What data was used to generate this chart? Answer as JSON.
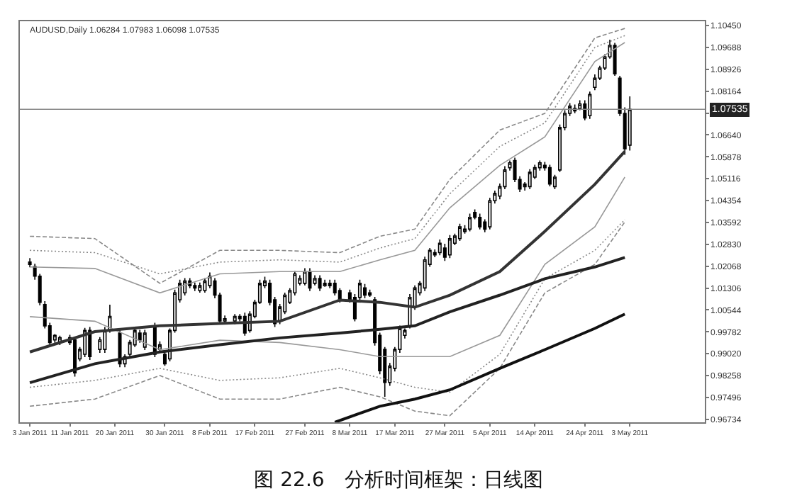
{
  "chart_data": {
    "type": "candlestick",
    "title": "图 22.6　分析时间框架：日线图",
    "annotations": [
      "AUDUSD,Daily 1.06284 1.07983 1.06098 1.07535"
    ],
    "color": "#000000",
    "grid": false,
    "marker": "none",
    "xlim": [
      "2011-01-01",
      "2011-05-18"
    ],
    "xticks": [
      {
        "value": "2011-01-03",
        "label": "3 Jan 2011"
      },
      {
        "value": "2011-01-11",
        "label": "11 Jan 2011"
      },
      {
        "value": "2011-01-20",
        "label": "20 Jan 2011"
      },
      {
        "value": "2011-01-30",
        "label": "30 Jan 2011"
      },
      {
        "value": "2011-02-08",
        "label": "8 Feb 2011"
      },
      {
        "value": "2011-02-17",
        "label": "17 Feb 2011"
      },
      {
        "value": "2011-02-27",
        "label": "27 Feb 2011"
      },
      {
        "value": "2011-03-08",
        "label": "8 Mar 2011"
      },
      {
        "value": "2011-03-17",
        "label": "17 Mar 2011"
      },
      {
        "value": "2011-03-27",
        "label": "27 Mar 2011"
      },
      {
        "value": "2011-04-05",
        "label": "5 Apr 2011"
      },
      {
        "value": "2011-04-14",
        "label": "14 Apr 2011"
      },
      {
        "value": "2011-04-24",
        "label": "24 Apr 2011"
      },
      {
        "value": "2011-05-03",
        "label": "3 May 2011"
      }
    ],
    "ylim": [
      0.9663,
      1.106
    ],
    "yticks": [
      {
        "value": 1.1045,
        "label": "1.10450"
      },
      {
        "value": 1.09688,
        "label": "1.09688"
      },
      {
        "value": 1.08926,
        "label": "1.08926"
      },
      {
        "value": 1.08164,
        "label": "1.08164"
      },
      {
        "value": 1.07402,
        "label": null
      },
      {
        "value": 1.0664,
        "label": "1.06640"
      },
      {
        "value": 1.05878,
        "label": "1.05878"
      },
      {
        "value": 1.05116,
        "label": "1.05116"
      },
      {
        "value": 1.04354,
        "label": "1.04354"
      },
      {
        "value": 1.03592,
        "label": "1.03592"
      },
      {
        "value": 1.0283,
        "label": "1.02830"
      },
      {
        "value": 1.02068,
        "label": "1.02068"
      },
      {
        "value": 1.01306,
        "label": "1.01306"
      },
      {
        "value": 1.00544,
        "label": "1.00544"
      },
      {
        "value": 0.99782,
        "label": "0.99782"
      },
      {
        "value": 0.9902,
        "label": "0.99020"
      },
      {
        "value": 0.98258,
        "label": "0.98258"
      },
      {
        "value": 0.97496,
        "label": "0.97496"
      },
      {
        "value": 0.96734,
        "label": "0.96734"
      }
    ],
    "ref_lines": [
      {
        "axis": "y",
        "value": 1.07535,
        "label": "1.07535",
        "color": "#888888"
      }
    ],
    "x": [
      "2011-01-03",
      "2011-01-04",
      "2011-01-05",
      "2011-01-06",
      "2011-01-07",
      "2011-01-08",
      "2011-01-09",
      "2011-01-11",
      "2011-01-12",
      "2011-01-13",
      "2011-01-14",
      "2011-01-15",
      "2011-01-17",
      "2011-01-18",
      "2011-01-19",
      "2011-01-21",
      "2011-01-22",
      "2011-01-23",
      "2011-01-24",
      "2011-01-25",
      "2011-01-26",
      "2011-01-28",
      "2011-01-29",
      "2011-01-30",
      "2011-01-31",
      "2011-02-01",
      "2011-02-02",
      "2011-02-03",
      "2011-02-04",
      "2011-02-05",
      "2011-02-06",
      "2011-02-07",
      "2011-02-08",
      "2011-02-09",
      "2011-02-10",
      "2011-02-11",
      "2011-02-13",
      "2011-02-14",
      "2011-02-15",
      "2011-02-16",
      "2011-02-17",
      "2011-02-18",
      "2011-02-19",
      "2011-02-20",
      "2011-02-21",
      "2011-02-22",
      "2011-02-23",
      "2011-02-24",
      "2011-02-25",
      "2011-02-26",
      "2011-02-27",
      "2011-02-28",
      "2011-03-01",
      "2011-03-02",
      "2011-03-03",
      "2011-03-04",
      "2011-03-05",
      "2011-03-06",
      "2011-03-08",
      "2011-03-09",
      "2011-03-10",
      "2011-03-11",
      "2011-03-12",
      "2011-03-13",
      "2011-03-14",
      "2011-03-15",
      "2011-03-16",
      "2011-03-17",
      "2011-03-18",
      "2011-03-19",
      "2011-03-20",
      "2011-03-21",
      "2011-03-22",
      "2011-03-23",
      "2011-03-24",
      "2011-03-25",
      "2011-03-26",
      "2011-03-27",
      "2011-03-28",
      "2011-03-29",
      "2011-03-30",
      "2011-03-31",
      "2011-04-01",
      "2011-04-02",
      "2011-04-03",
      "2011-04-04",
      "2011-04-05",
      "2011-04-06",
      "2011-04-07",
      "2011-04-08",
      "2011-04-09",
      "2011-04-10",
      "2011-04-11",
      "2011-04-12",
      "2011-04-13",
      "2011-04-14",
      "2011-04-15",
      "2011-04-16",
      "2011-04-17",
      "2011-04-18",
      "2011-04-19",
      "2011-04-20",
      "2011-04-21",
      "2011-04-22",
      "2011-04-23",
      "2011-04-24",
      "2011-04-25",
      "2011-04-26",
      "2011-04-27",
      "2011-04-28",
      "2011-04-29",
      "2011-04-30",
      "2011-05-01",
      "2011-05-02",
      "2011-05-03"
    ],
    "ohlc": [
      [
        1.0221,
        1.0235,
        1.0203,
        1.0213
      ],
      [
        1.0205,
        1.0215,
        1.016,
        1.0172
      ],
      [
        1.0172,
        1.018,
        1.007,
        1.0081
      ],
      [
        1.0073,
        1.0085,
        0.999,
        0.9999
      ],
      [
        0.9999,
        1.001,
        0.993,
        0.9941
      ],
      [
        0.995,
        0.997,
        0.994,
        0.9966
      ],
      [
        0.9941,
        0.9965,
        0.9932,
        0.9958
      ],
      [
        0.9958,
        0.9968,
        0.9932,
        0.9941
      ],
      [
        0.995,
        0.996,
        0.9822,
        0.9835
      ],
      [
        0.9884,
        0.9925,
        0.9875,
        0.9917
      ],
      [
        0.99,
        0.9992,
        0.989,
        0.9983
      ],
      [
        0.9983,
        0.9995,
        0.988,
        0.9892
      ],
      [
        0.9917,
        0.996,
        0.9905,
        0.995
      ],
      [
        0.9917,
        0.9995,
        0.9905,
        0.9983
      ],
      [
        0.9983,
        1.0073,
        0.9975,
        1.0032
      ],
      [
        0.9974,
        0.999,
        0.9855,
        0.9867
      ],
      [
        0.9867,
        0.99,
        0.9855,
        0.9892
      ],
      [
        0.99,
        0.995,
        0.989,
        0.9941
      ],
      [
        0.9933,
        0.999,
        0.9925,
        0.9983
      ],
      [
        0.9974,
        0.9985,
        0.994,
        0.995
      ],
      [
        0.9925,
        0.9985,
        0.9915,
        0.9974
      ],
      [
        0.9999,
        1.001,
        0.989,
        0.99
      ],
      [
        0.9917,
        0.9945,
        0.9905,
        0.9933
      ],
      [
        0.99,
        0.991,
        0.986,
        0.9867
      ],
      [
        0.9884,
        0.999,
        0.9875,
        0.9983
      ],
      [
        0.9983,
        1.0125,
        0.9975,
        1.0114
      ],
      [
        1.009,
        1.016,
        1.008,
        1.0147
      ],
      [
        1.0114,
        1.0165,
        1.0105,
        1.0155
      ],
      [
        1.0155,
        1.0165,
        1.013,
        1.0139
      ],
      [
        1.0139,
        1.015,
        1.012,
        1.0131
      ],
      [
        1.0122,
        1.015,
        1.0115,
        1.0139
      ],
      [
        1.0122,
        1.0165,
        1.0115,
        1.0155
      ],
      [
        1.0139,
        1.0185,
        1.013,
        1.0172
      ],
      [
        1.0155,
        1.0165,
        1.0095,
        1.0106
      ],
      [
        1.0106,
        1.0115,
        1.0005,
        1.0016
      ],
      [
        1.0016,
        1.0035,
        1.001,
        1.0024
      ],
      [
        1.0016,
        1.004,
        1.0005,
        1.0032
      ],
      [
        1.0032,
        1.004,
        1.0015,
        1.0024
      ],
      [
        1.0032,
        1.0045,
        0.9965,
        0.9974
      ],
      [
        0.9983,
        1.005,
        0.9975,
        1.004
      ],
      [
        1.0032,
        1.009,
        1.0025,
        1.0081
      ],
      [
        1.0081,
        1.016,
        1.0075,
        1.0147
      ],
      [
        1.0139,
        1.017,
        1.013,
        1.0155
      ],
      [
        1.0147,
        1.016,
        1.007,
        1.0081
      ],
      [
        1.009,
        1.01,
        0.9995,
        1.0007
      ],
      [
        1.0016,
        1.0075,
        1.0005,
        1.0065
      ],
      [
        1.0048,
        1.0115,
        1.004,
        1.0106
      ],
      [
        1.0081,
        1.013,
        1.0075,
        1.0122
      ],
      [
        1.0114,
        1.019,
        1.0105,
        1.018
      ],
      [
        1.0147,
        1.0175,
        1.014,
        1.0164
      ],
      [
        1.0147,
        1.02,
        1.014,
        1.0188
      ],
      [
        1.0188,
        1.02,
        1.012,
        1.0131
      ],
      [
        1.0147,
        1.0175,
        1.014,
        1.0164
      ],
      [
        1.0164,
        1.0175,
        1.012,
        1.0131
      ],
      [
        1.0139,
        1.016,
        1.0135,
        1.0147
      ],
      [
        1.0147,
        1.016,
        1.013,
        1.0139
      ],
      [
        1.0147,
        1.016,
        1.0105,
        1.0114
      ],
      [
        1.0122,
        1.013,
        1.008,
        1.009
      ],
      [
        1.0114,
        1.0125,
        1.008,
        1.009
      ],
      [
        1.0098,
        1.011,
        1.0015,
        1.0024
      ],
      [
        1.0098,
        1.016,
        1.009,
        1.0147
      ],
      [
        1.0131,
        1.0145,
        1.0095,
        1.0106
      ],
      [
        1.0114,
        1.0125,
        1.01,
        1.0106
      ],
      [
        1.009,
        1.01,
        0.993,
        0.9941
      ],
      [
        0.9966,
        0.9975,
        0.983,
        0.9843
      ],
      [
        0.9917,
        0.9925,
        0.9752,
        0.9802
      ],
      [
        0.9802,
        0.987,
        0.979,
        0.9859
      ],
      [
        0.9851,
        0.9925,
        0.984,
        0.9917
      ],
      [
        0.9917,
        1.0,
        0.9905,
        0.9991
      ],
      [
        0.9966,
        0.999,
        0.9955,
        0.9983
      ],
      [
        0.9999,
        1.011,
        0.999,
        1.0098
      ],
      [
        1.0065,
        1.014,
        1.0055,
        1.0131
      ],
      [
        1.0114,
        1.0155,
        1.0105,
        1.0147
      ],
      [
        1.0131,
        1.024,
        1.012,
        1.0229
      ],
      [
        1.0213,
        1.027,
        1.0205,
        1.0262
      ],
      [
        1.0254,
        1.0265,
        1.0238,
        1.0246
      ],
      [
        1.0254,
        1.03,
        1.0245,
        1.0287
      ],
      [
        1.027,
        1.0285,
        1.0225,
        1.0238
      ],
      [
        1.0246,
        1.0315,
        1.0235,
        1.0303
      ],
      [
        1.0287,
        1.032,
        1.028,
        1.0312
      ],
      [
        1.0303,
        1.0355,
        1.0295,
        1.0344
      ],
      [
        1.0328,
        1.035,
        1.032,
        1.0336
      ],
      [
        1.0336,
        1.039,
        1.0328,
        1.0377
      ],
      [
        1.0394,
        1.0405,
        1.037,
        1.0377
      ],
      [
        1.0377,
        1.039,
        1.0335,
        1.0344
      ],
      [
        1.0361,
        1.037,
        1.0325,
        1.0336
      ],
      [
        1.0344,
        1.0445,
        1.0335,
        1.0435
      ],
      [
        1.0435,
        1.047,
        1.0425,
        1.046
      ],
      [
        1.0451,
        1.0495,
        1.044,
        1.0484
      ],
      [
        1.0484,
        1.0555,
        1.0475,
        1.0542
      ],
      [
        1.055,
        1.0575,
        1.054,
        1.0567
      ],
      [
        1.0575,
        1.0585,
        1.05,
        1.0509
      ],
      [
        1.0509,
        1.052,
        1.0465,
        1.0476
      ],
      [
        1.0484,
        1.05,
        1.047,
        1.0493
      ],
      [
        1.0484,
        1.0545,
        1.0475,
        1.0534
      ],
      [
        1.0517,
        1.056,
        1.051,
        1.055
      ],
      [
        1.055,
        1.0575,
        1.054,
        1.0567
      ],
      [
        1.0558,
        1.057,
        1.054,
        1.055
      ],
      [
        1.055,
        1.056,
        1.0485,
        1.0493
      ],
      [
        1.0484,
        1.0525,
        1.0475,
        1.0517
      ],
      [
        1.0542,
        1.07,
        1.0535,
        1.069
      ],
      [
        1.069,
        1.075,
        1.068,
        1.0739
      ],
      [
        1.0739,
        1.0775,
        1.073,
        1.0764
      ],
      [
        1.0756,
        1.077,
        1.074,
        1.0748
      ],
      [
        1.0756,
        1.0785,
        1.075,
        1.0772
      ],
      [
        1.0772,
        1.0785,
        1.0715,
        1.0723
      ],
      [
        1.0731,
        1.0815,
        1.072,
        1.0805
      ],
      [
        1.083,
        1.0875,
        1.082,
        1.0862
      ],
      [
        1.0862,
        1.0905,
        1.0855,
        1.0897
      ],
      [
        1.0897,
        1.0945,
        1.089,
        1.0936
      ],
      [
        1.0936,
        1.0996,
        1.093,
        1.0976
      ],
      [
        1.0976,
        1.0985,
        1.087,
        1.0877
      ],
      [
        1.0862,
        1.087,
        1.073,
        1.0739
      ],
      [
        1.0739,
        1.076,
        1.0595,
        1.0616
      ],
      [
        1.06284,
        1.07983,
        1.06098,
        1.07535
      ]
    ],
    "series": [
      {
        "type": "line",
        "color": "#888888",
        "line_style": "dashed",
        "x": [
          "2011-01-03",
          "2011-01-16",
          "2011-01-29",
          "2011-02-10",
          "2011-02-22",
          "2011-03-06",
          "2011-03-14",
          "2011-03-21",
          "2011-03-28",
          "2011-04-07",
          "2011-04-16",
          "2011-04-26",
          "2011-05-02"
        ],
        "values": [
          1.0311,
          1.0303,
          1.0147,
          1.0262,
          1.0262,
          1.0254,
          1.0311,
          1.0336,
          1.0509,
          1.0681,
          1.0739,
          1.1002,
          1.1035
        ]
      },
      {
        "type": "line",
        "color": "#888888",
        "line_style": "dotted",
        "x": [
          "2011-01-03",
          "2011-01-16",
          "2011-01-29",
          "2011-02-10",
          "2011-02-22",
          "2011-03-06",
          "2011-03-14",
          "2011-03-21",
          "2011-03-28",
          "2011-04-07",
          "2011-04-16",
          "2011-04-26",
          "2011-05-02"
        ],
        "values": [
          1.0262,
          1.0254,
          1.018,
          1.0221,
          1.0229,
          1.0221,
          1.027,
          1.0303,
          1.0459,
          1.0624,
          1.0706,
          1.0969,
          1.101
        ]
      },
      {
        "type": "line",
        "color": "#999999",
        "line_style": "solid",
        "x": [
          "2011-01-03",
          "2011-01-16",
          "2011-01-29",
          "2011-02-10",
          "2011-02-22",
          "2011-03-06",
          "2011-03-14",
          "2011-03-21",
          "2011-03-28",
          "2011-04-07",
          "2011-04-16",
          "2011-04-26",
          "2011-05-02"
        ],
        "values": [
          1.0204,
          1.0199,
          1.0114,
          1.018,
          1.0188,
          1.0188,
          1.0229,
          1.0262,
          1.041,
          1.0558,
          1.0657,
          1.092,
          1.0986
        ]
      },
      {
        "type": "line",
        "color": "#999999",
        "line_style": "solid",
        "x": [
          "2011-01-03",
          "2011-01-16",
          "2011-01-29",
          "2011-02-10",
          "2011-02-22",
          "2011-03-06",
          "2011-03-14",
          "2011-03-21",
          "2011-03-28",
          "2011-04-07",
          "2011-04-16",
          "2011-04-26",
          "2011-05-02"
        ],
        "values": [
          1.0031,
          1.0015,
          0.9916,
          0.9949,
          0.9941,
          0.9916,
          0.9892,
          0.9892,
          0.9892,
          0.9966,
          1.0213,
          1.0344,
          1.0517
        ]
      },
      {
        "type": "line",
        "color": "#888888",
        "line_style": "dotted",
        "x": [
          "2011-01-03",
          "2011-01-16",
          "2011-01-29",
          "2011-02-10",
          "2011-02-22",
          "2011-03-06",
          "2011-03-14",
          "2011-03-21",
          "2011-03-28",
          "2011-04-07",
          "2011-04-16",
          "2011-04-26",
          "2011-05-02"
        ],
        "values": [
          0.9785,
          0.9809,
          0.9851,
          0.9809,
          0.9818,
          0.9851,
          0.9818,
          0.9785,
          0.9768,
          0.99,
          1.0163,
          1.0262,
          1.0369
        ]
      },
      {
        "type": "line",
        "color": "#888888",
        "line_style": "dashed",
        "x": [
          "2011-01-03",
          "2011-01-16",
          "2011-01-29",
          "2011-02-10",
          "2011-02-22",
          "2011-03-06",
          "2011-03-14",
          "2011-03-21",
          "2011-03-28",
          "2011-04-07",
          "2011-04-16",
          "2011-04-26",
          "2011-05-02"
        ],
        "values": [
          0.9719,
          0.9744,
          0.9826,
          0.9744,
          0.9744,
          0.9785,
          0.9752,
          0.9702,
          0.9686,
          0.9851,
          1.0114,
          1.0213,
          1.0361
        ]
      },
      {
        "type": "line",
        "color": "#333333",
        "line_style": "solid",
        "x": [
          "2011-01-03",
          "2011-01-16",
          "2011-01-29",
          "2011-02-10",
          "2011-02-22",
          "2011-03-06",
          "2011-03-14",
          "2011-03-21",
          "2011-03-28",
          "2011-04-07",
          "2011-04-16",
          "2011-04-26",
          "2011-05-02"
        ],
        "values": [
          0.9908,
          0.9979,
          0.9999,
          1.0007,
          1.0015,
          1.0089,
          1.0081,
          1.0064,
          1.0106,
          1.0188,
          1.0328,
          1.0492,
          1.0607
        ]
      },
      {
        "type": "line",
        "color": "#222222",
        "line_style": "solid",
        "x": [
          "2011-01-03",
          "2011-01-16",
          "2011-01-29",
          "2011-02-10",
          "2011-02-22",
          "2011-03-06",
          "2011-03-14",
          "2011-03-21",
          "2011-03-28",
          "2011-04-07",
          "2011-04-16",
          "2011-04-26",
          "2011-05-02"
        ],
        "values": [
          0.9801,
          0.9867,
          0.9908,
          0.9933,
          0.9957,
          0.9974,
          0.9987,
          0.9999,
          1.0048,
          1.0106,
          1.0163,
          1.0204,
          1.0237
        ]
      },
      {
        "type": "line",
        "color": "#111111",
        "line_style": "solid",
        "x": [
          "2011-03-05",
          "2011-03-14",
          "2011-03-21",
          "2011-03-28",
          "2011-04-07",
          "2011-04-16",
          "2011-04-26",
          "2011-05-02"
        ],
        "values": [
          0.9663,
          0.9719,
          0.9744,
          0.9776,
          0.9851,
          0.9916,
          0.999,
          1.004
        ]
      }
    ]
  }
}
